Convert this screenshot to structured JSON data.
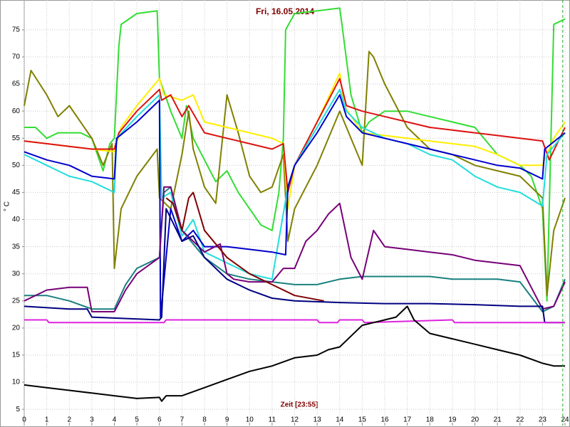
{
  "chart_data": {
    "type": "line",
    "title": "Fri, 16.05.2014",
    "xlabel": "Zeit [23:55]",
    "ylabel": "° C",
    "xlim": [
      0,
      24
    ],
    "ylim": [
      2,
      80.5
    ],
    "xticks": [
      0,
      1,
      2,
      3,
      4,
      5,
      6,
      7,
      8,
      9,
      10,
      11,
      12,
      13,
      14,
      15,
      16,
      17,
      18,
      19,
      20,
      21,
      22,
      23,
      24
    ],
    "yticks": [
      5,
      10,
      15,
      20,
      25,
      30,
      35,
      40,
      45,
      50,
      55,
      60,
      65,
      70,
      75
    ],
    "grid": true,
    "cursor_x": 23.9,
    "cursor_color": "#22aa22",
    "series": [
      {
        "color": "#33dd33",
        "x": [
          0,
          0.5,
          1,
          1.5,
          2,
          2.5,
          3,
          3.5,
          3.8,
          4,
          4.2,
          4.3,
          5,
          5.9,
          6,
          6.5,
          7,
          7.2,
          7.5,
          8,
          8.5,
          9,
          9.5,
          10,
          10.5,
          11,
          11.3,
          11.5,
          11.6,
          12,
          13,
          14,
          14.1,
          14.5,
          15,
          15.3,
          16,
          17,
          18,
          19,
          20,
          21,
          22,
          22.5,
          23,
          23.2,
          23.5,
          24
        ],
        "values": [
          57,
          57,
          55,
          56,
          56,
          56,
          55,
          49,
          54,
          55,
          72,
          76,
          78,
          78.5,
          66,
          60,
          55,
          61,
          55,
          51,
          47,
          49,
          45,
          42,
          39,
          38,
          45,
          55,
          75,
          78,
          78.5,
          79,
          76,
          63,
          56,
          58,
          60,
          60,
          59,
          58,
          57,
          52,
          50,
          48,
          42,
          25,
          76,
          77
        ]
      },
      {
        "color": "#808000",
        "x": [
          0,
          0.3,
          1,
          1.5,
          2,
          2.5,
          3,
          3.5,
          3.9,
          4,
          4.3,
          5,
          5.9,
          6,
          6.5,
          7,
          7.3,
          7.5,
          8,
          8.5,
          9,
          9.5,
          10,
          10.5,
          11,
          11.5,
          11.7,
          12,
          13,
          14,
          14.5,
          15,
          15.3,
          15.5,
          16,
          17,
          18,
          19,
          20,
          21,
          22,
          22.5,
          23,
          23.2,
          23.5,
          24
        ],
        "values": [
          61,
          67.5,
          63,
          59,
          61,
          58,
          55,
          50,
          54,
          31,
          42,
          48,
          53,
          44,
          42,
          52,
          60,
          53,
          46,
          43,
          63,
          56,
          48,
          45,
          46,
          52,
          36,
          42,
          50,
          60,
          55,
          50,
          71,
          70,
          65,
          57,
          53,
          52,
          50,
          49,
          48,
          46,
          44,
          26,
          38,
          44
        ]
      },
      {
        "color": "#ffee00",
        "x": [
          0,
          1,
          2,
          3,
          4,
          4.3,
          5,
          6,
          6.2,
          7,
          7.5,
          8,
          9,
          10,
          11,
          11.5,
          11.7,
          12,
          13,
          14,
          14.2,
          15,
          16,
          17,
          18,
          19,
          20,
          21,
          22,
          23,
          23.5,
          24
        ],
        "values": [
          54.5,
          54,
          53.5,
          53,
          52.5,
          57,
          61,
          66,
          63,
          62,
          63,
          58,
          57,
          56,
          55,
          54,
          42,
          50,
          58,
          67,
          61,
          56,
          55.5,
          55,
          54.5,
          54,
          53.5,
          52,
          50,
          50,
          55,
          58
        ]
      },
      {
        "color": "#dd1111",
        "x": [
          0,
          1,
          2,
          3,
          4,
          4.2,
          5,
          6,
          6.1,
          6.5,
          7,
          7.3,
          8,
          9,
          10,
          11,
          11.5,
          11.7,
          12,
          13,
          14,
          14.3,
          15,
          16,
          17,
          18,
          19,
          20,
          21,
          22,
          23,
          23.3,
          24
        ],
        "values": [
          54.5,
          54,
          53.5,
          53,
          53,
          56,
          60,
          64,
          62,
          63,
          59,
          61,
          56,
          55,
          54,
          53,
          54,
          45,
          50,
          58,
          66,
          61,
          60,
          59,
          58,
          57,
          56.5,
          56,
          55.5,
          55,
          54.5,
          51,
          57
        ]
      },
      {
        "color": "#22dddd",
        "x": [
          0,
          1,
          2,
          3,
          4,
          4.1,
          5,
          6,
          6.1,
          6.5,
          7,
          7.5,
          8,
          9,
          10,
          11,
          11.7,
          12,
          13,
          14,
          14.3,
          15,
          16,
          17,
          18,
          19,
          20,
          21,
          22,
          23,
          23.2,
          24
        ],
        "values": [
          52,
          50,
          48,
          47,
          45,
          55,
          59,
          63,
          44,
          45,
          37,
          40,
          34,
          32,
          30,
          29,
          46,
          50,
          57,
          64,
          60,
          57,
          55,
          54,
          52,
          51,
          48,
          46,
          45,
          42.5,
          52,
          56
        ]
      },
      {
        "color": "#0000cc",
        "x": [
          0,
          1,
          2,
          3,
          4,
          4.1,
          5,
          6,
          6.05,
          6.5,
          7,
          7.5,
          8,
          9,
          10,
          11,
          11.6,
          11.7,
          12,
          13,
          14,
          14.3,
          15,
          16,
          17,
          18,
          19,
          20,
          21,
          22,
          23,
          23.1,
          24
        ],
        "values": [
          52.5,
          51,
          50,
          48,
          47.5,
          55,
          58,
          62,
          22,
          42,
          36,
          38,
          35,
          35,
          34.5,
          34,
          33.5,
          46,
          50,
          56,
          63,
          59,
          56,
          55,
          54,
          53,
          52,
          51,
          50,
          49.5,
          47.5,
          53,
          56
        ]
      },
      {
        "color": "#1a8080",
        "x": [
          0,
          1,
          2,
          3,
          4,
          4.5,
          5,
          6,
          6.2,
          6.5,
          7,
          8,
          9,
          10,
          11,
          12,
          13,
          14,
          15,
          16,
          17,
          18,
          19,
          20,
          21,
          22,
          23,
          23.5,
          24
        ],
        "values": [
          26,
          26,
          25,
          23.5,
          23.5,
          28,
          31,
          33,
          45,
          46,
          38,
          33,
          30,
          29,
          28.5,
          28,
          28,
          29,
          29.5,
          29.5,
          29.5,
          29.5,
          29,
          29,
          29,
          28.5,
          23,
          24,
          29
        ]
      },
      {
        "color": "#770077",
        "x": [
          0,
          1,
          2,
          2.8,
          3,
          4,
          4.5,
          5,
          6,
          6.2,
          6.5,
          7,
          8,
          8.7,
          9,
          9.3,
          10,
          11,
          11.5,
          12,
          12.5,
          13,
          13.5,
          14,
          14.5,
          15,
          15.5,
          16,
          17,
          18,
          19,
          20,
          21,
          22,
          23,
          23.5,
          24
        ],
        "values": [
          25,
          27,
          27.5,
          27.5,
          23,
          23,
          27,
          30,
          33,
          46,
          46,
          38,
          34,
          35.5,
          30,
          29,
          28.5,
          28.5,
          31,
          31,
          36,
          38,
          41,
          43,
          33,
          29,
          38,
          35,
          34.5,
          34,
          33.5,
          32.5,
          32,
          31.5,
          23.5,
          24,
          28.5
        ]
      },
      {
        "color": "#800000",
        "x": [
          6.3,
          6.6,
          7,
          7.3,
          7.5,
          8,
          9,
          10,
          11,
          12,
          13.3
        ],
        "values": [
          44,
          43,
          38,
          44,
          45,
          38,
          33,
          30,
          28,
          26,
          25
        ]
      },
      {
        "color": "#000080",
        "x": [
          0,
          2,
          2.8,
          3,
          6,
          6.1,
          6.3,
          7,
          7.5,
          8,
          9,
          10,
          11,
          12,
          14,
          16,
          18,
          20,
          22,
          23,
          23.1,
          24
        ],
        "values": [
          24,
          23.5,
          23.5,
          22,
          21.5,
          22,
          42,
          36,
          37,
          33,
          29,
          27,
          25.5,
          25,
          24.7,
          24.5,
          24.5,
          24.3,
          24,
          24,
          21,
          21
        ]
      },
      {
        "color": "#dd22dd",
        "x": [
          0,
          1,
          1.1,
          6.2,
          6.3,
          13,
          13.1,
          13.9,
          14,
          15,
          15.1,
          19,
          19.1,
          24
        ],
        "values": [
          21.5,
          21.5,
          21,
          21,
          21.5,
          21.5,
          21,
          21,
          21.5,
          21.5,
          21,
          21.5,
          21,
          21
        ]
      },
      {
        "color": "#000000",
        "x": [
          0,
          1,
          2,
          3,
          4,
          5,
          6,
          6.1,
          6.3,
          7,
          8,
          9,
          10,
          11,
          12,
          13,
          13.5,
          14,
          14.5,
          15,
          15.5,
          16,
          16.5,
          17,
          17.3,
          18,
          19,
          20,
          21,
          22,
          23,
          23.5,
          24
        ],
        "values": [
          9.5,
          9,
          8.5,
          8,
          7.5,
          7,
          7.2,
          6.5,
          7.5,
          7.5,
          9,
          10.5,
          12,
          13,
          14.5,
          15,
          16,
          16.5,
          18.5,
          20.5,
          21,
          21.5,
          22,
          24,
          21.5,
          19,
          18,
          17,
          16,
          15,
          13.5,
          13,
          13
        ]
      }
    ]
  }
}
